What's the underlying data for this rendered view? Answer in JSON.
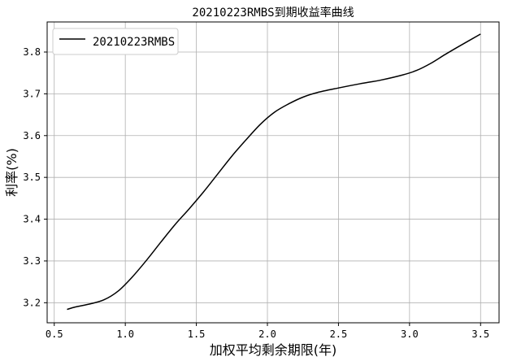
{
  "chart_data": {
    "type": "line",
    "title": "20210223RMBS到期收益率曲线",
    "xlabel": "加权平均剩余期限(年)",
    "ylabel": "利率(%)",
    "xlim": [
      0.45,
      3.63
    ],
    "ylim": [
      3.152,
      3.872
    ],
    "x_ticks": [
      0.5,
      1.0,
      1.5,
      2.0,
      2.5,
      3.0,
      3.5
    ],
    "x_tick_labels": [
      "0.5",
      "1.0",
      "1.5",
      "2.0",
      "2.5",
      "3.0",
      "3.5"
    ],
    "y_ticks": [
      3.2,
      3.3,
      3.4,
      3.5,
      3.6,
      3.7,
      3.8
    ],
    "y_tick_labels": [
      "3.2",
      "3.3",
      "3.4",
      "3.5",
      "3.6",
      "3.7",
      "3.8"
    ],
    "grid": true,
    "legend_position": "top-left",
    "series": [
      {
        "name": "20210223RMBS",
        "color": "#000000",
        "x": [
          0.59,
          0.65,
          0.75,
          0.85,
          0.95,
          1.05,
          1.15,
          1.25,
          1.35,
          1.45,
          1.55,
          1.65,
          1.75,
          1.85,
          1.95,
          2.05,
          2.15,
          2.25,
          2.35,
          2.5,
          2.65,
          2.8,
          2.95,
          3.05,
          3.15,
          3.25,
          3.35,
          3.5
        ],
        "values": [
          3.184,
          3.19,
          3.197,
          3.207,
          3.228,
          3.262,
          3.302,
          3.345,
          3.387,
          3.425,
          3.465,
          3.508,
          3.551,
          3.59,
          3.627,
          3.656,
          3.676,
          3.692,
          3.703,
          3.714,
          3.724,
          3.733,
          3.745,
          3.756,
          3.773,
          3.794,
          3.814,
          3.843
        ]
      }
    ]
  }
}
